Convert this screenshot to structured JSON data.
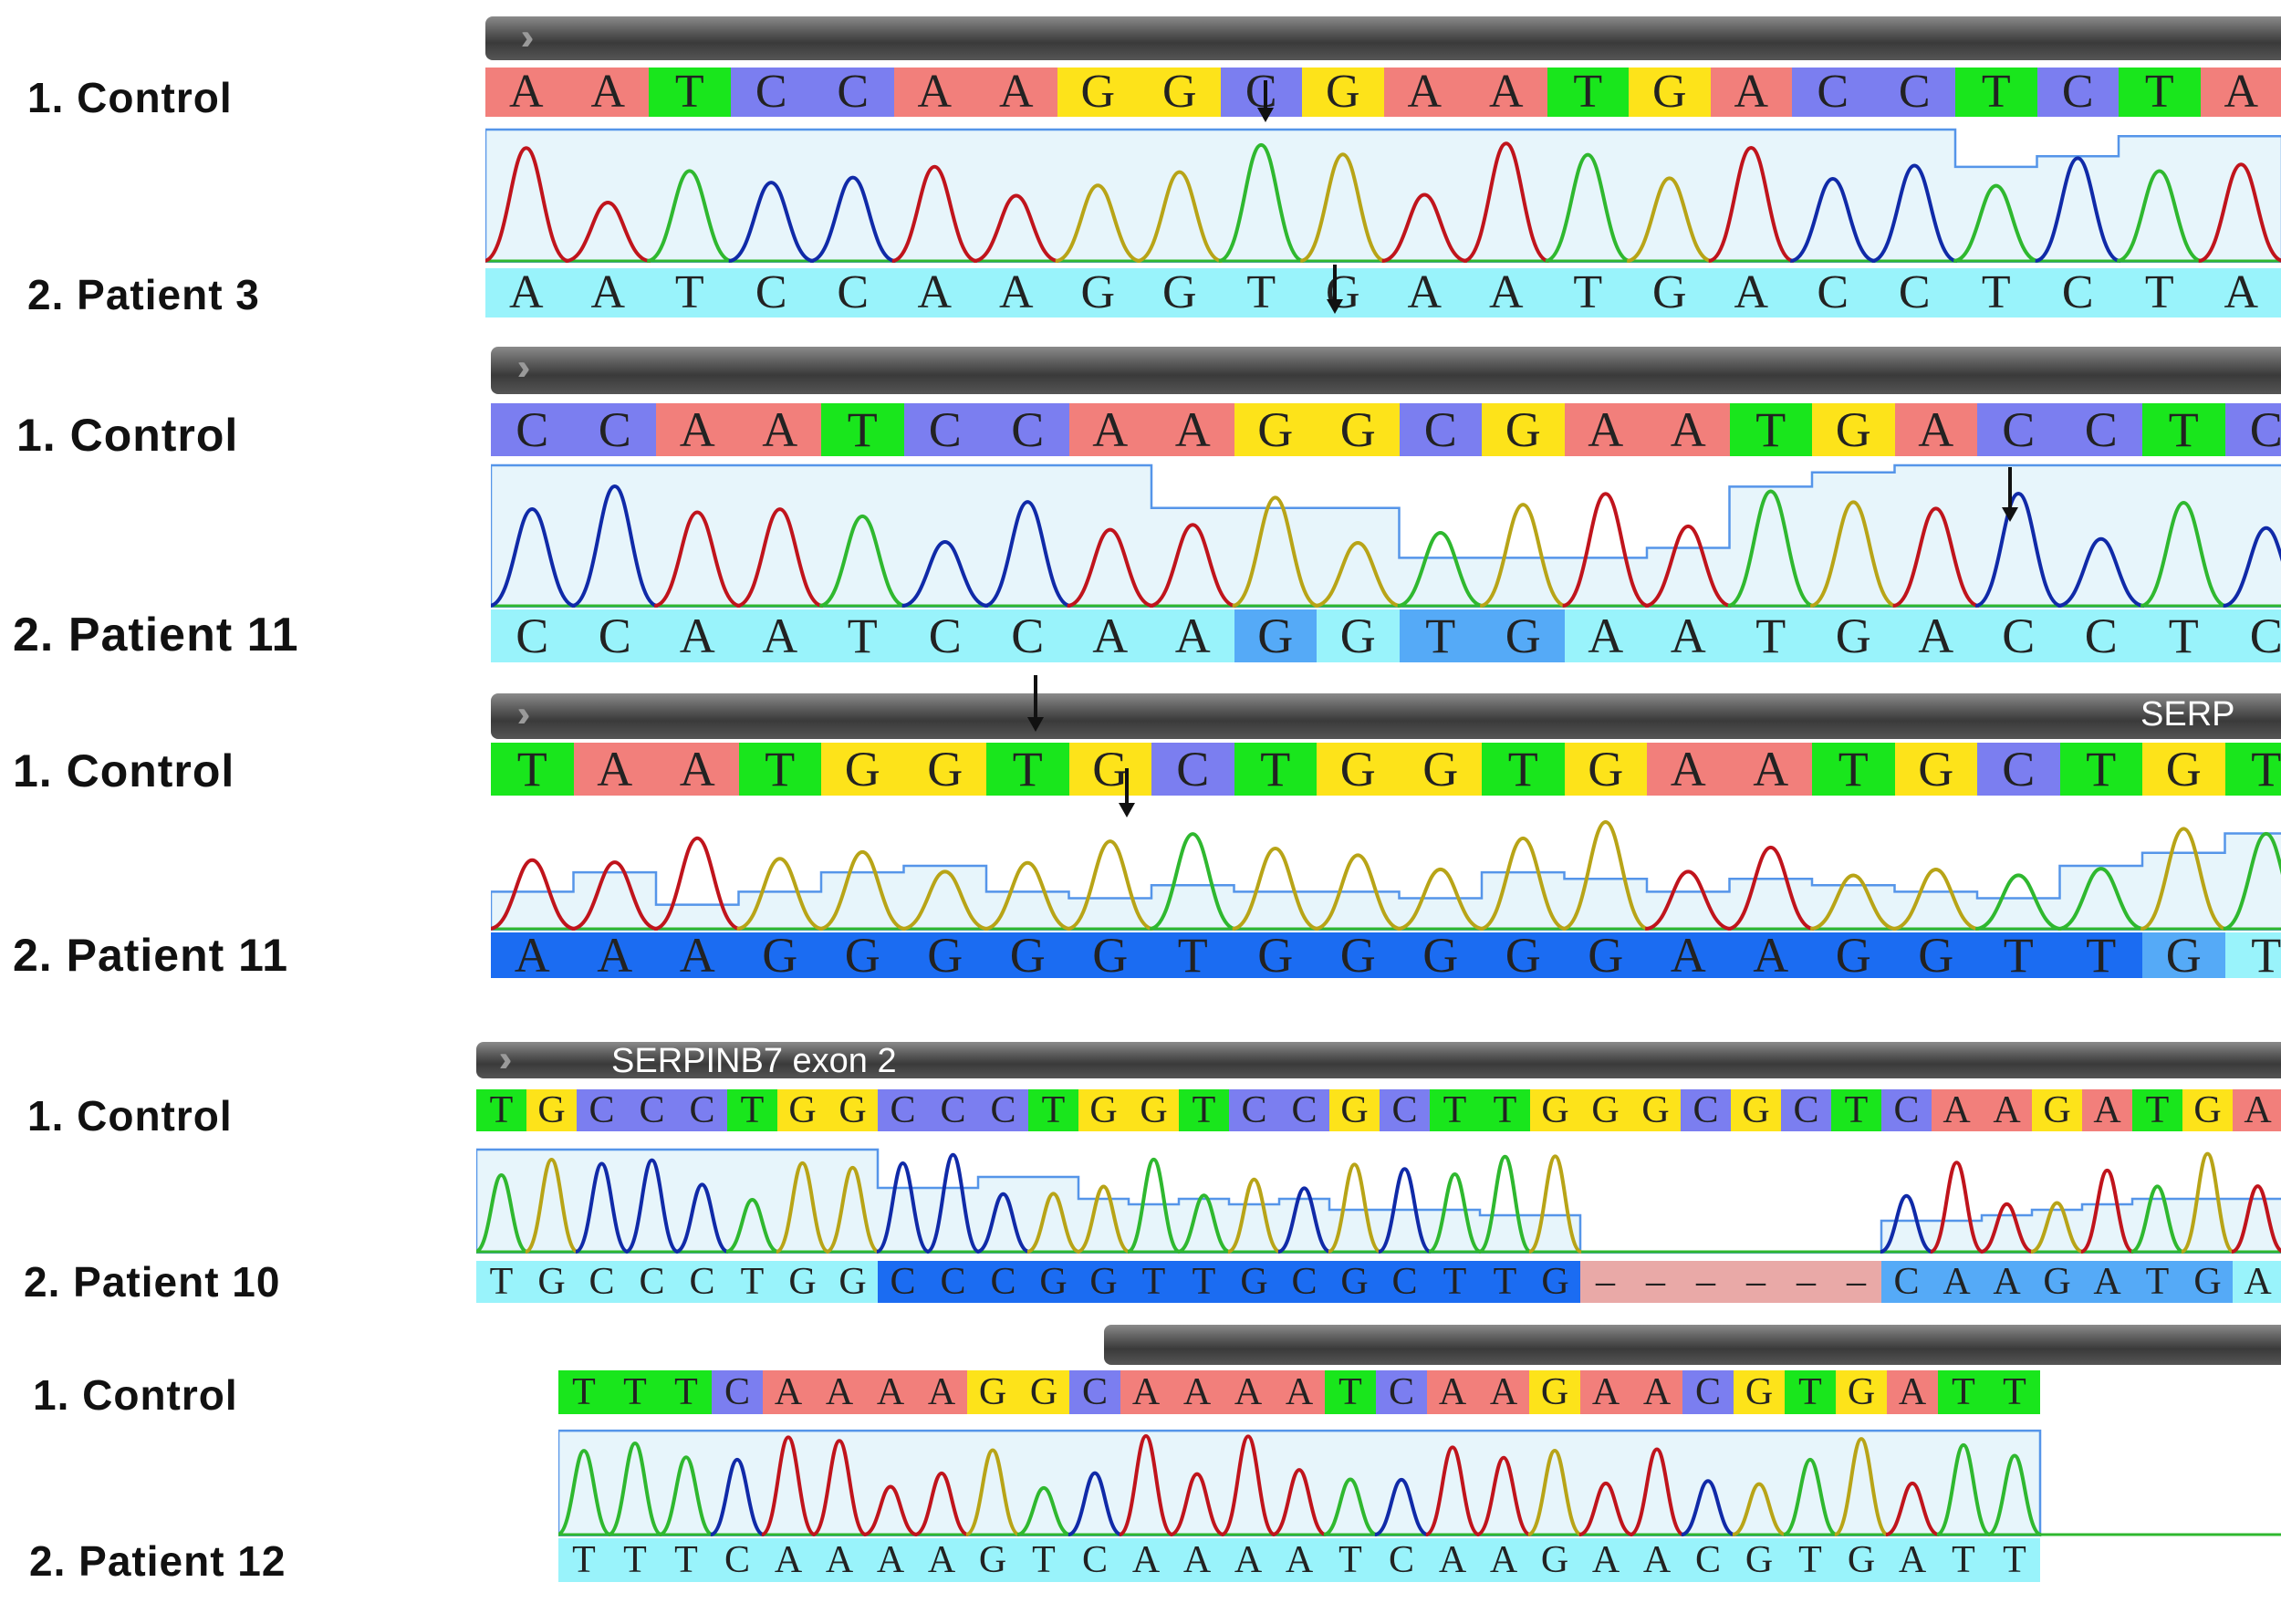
{
  "colors": {
    "A": "#f27f7b",
    "C": "#7b7ef0",
    "G": "#fde31a",
    "T": "#19e61c",
    "match": "#99f3fb",
    "variant": "#55aaf7",
    "variant_dark": "#1b6cf2",
    "gap": "#e9a9a7",
    "trace_A": "#c0141c",
    "trace_C": "#102aa8",
    "trace_G": "#b8a417",
    "trace_T": "#2fb82f",
    "quality": "#5595e9",
    "quality_fill": "#e7f5fb"
  },
  "arrow_icon": "down-arrow-icon",
  "panels": [
    {
      "control_label": "1. Control",
      "patient_label": "2. Patient 3",
      "header_text": "",
      "control_seq": "AATCCAAGGCGAATGACCTCTA",
      "patient_seq": "AATCCAAGGTGAATGACCTCTA",
      "patient_hl": "cccccccccccccccccccccc",
      "quality": [
        1.0,
        1.0,
        1.0,
        1.0,
        1.0,
        1.0,
        1.0,
        1.0,
        1.0,
        1.0,
        1.0,
        1.0,
        1.0,
        1.0,
        1.0,
        1.0,
        1.0,
        1.0,
        0.72,
        0.8,
        0.95,
        0.95
      ]
    },
    {
      "control_label": "1. Control",
      "patient_label": "2. Patient 11",
      "header_text": "",
      "control_seq": "CCAATCCAAGGCGAATGACCTCT",
      "patient_seq": "CCAATCCAAGGTGAATGACCTCT",
      "patient_hl": "cccccccccvcvvcccccccccc",
      "quality": [
        1.0,
        1.0,
        1.0,
        1.0,
        1.0,
        1.0,
        1.0,
        1.0,
        0.7,
        0.7,
        0.7,
        0.35,
        0.35,
        0.35,
        0.42,
        0.85,
        0.95,
        1.0,
        1.0,
        1.0,
        1.0,
        1.0,
        1.0
      ]
    },
    {
      "control_label": "1. Control",
      "patient_label": "2. Patient 11",
      "header_text": "SERP",
      "control_seq": "TAATGGTGCTGGTGAATGCTGT",
      "patient_seq": "AAAGGGGGTGGGGGAAGGTTGT",
      "patient_hl": "ddddddddddddddddddddvc",
      "quality": [
        0.3,
        0.45,
        0.2,
        0.3,
        0.45,
        0.5,
        0.3,
        0.25,
        0.35,
        0.3,
        0.3,
        0.25,
        0.45,
        0.4,
        0.3,
        0.4,
        0.35,
        0.3,
        0.25,
        0.5,
        0.6,
        0.75
      ]
    },
    {
      "control_label": "1. Control",
      "patient_label": "2. Patient 10",
      "header_text": "SERPINB7 exon 2",
      "control_seq": "TGCCCTGGCCCTGGTCCGCTTGGGCGCTCAAGATGA",
      "patient_seq": "TGCCCTGGCCCGGTTGCGCTTG------CAAGATGA",
      "patient_hl": "ccccccccdddddddddddddd------vvvvvvvc",
      "quality": [
        0.95,
        0.95,
        0.95,
        0.95,
        0.95,
        0.95,
        0.95,
        0.95,
        0.6,
        0.6,
        0.7,
        0.7,
        0.5,
        0.45,
        0.5,
        0.45,
        0.5,
        0.4,
        0.4,
        0.4,
        0.35,
        0.35,
        0,
        0,
        0,
        0,
        0,
        0,
        0.3,
        0.3,
        0.35,
        0.4,
        0.45,
        0.5,
        0.5,
        0.5
      ]
    },
    {
      "control_label": "1. Control",
      "patient_label": "2. Patient 12",
      "header_text": "",
      "control_seq": "TTTCAAAAGGCAAAATCAAGAACGTGATT",
      "patient_seq": "TTTCAAAAGTCAAAATCAAGAACGTGATT",
      "patient_hl": "ccccccccccccccccccccccccccccc",
      "quality": [
        0.95,
        0.95,
        0.95,
        0.95,
        0.95,
        0.95,
        0.95,
        0.95,
        0.95,
        0.95,
        0.95,
        0.95,
        0.95,
        0.95,
        0.95,
        0.95,
        0.95,
        0.95,
        0.95,
        0.95,
        0.95,
        0.95,
        0.95,
        0.95,
        0.95,
        0.95,
        0.95,
        0.95,
        0.95
      ]
    }
  ]
}
